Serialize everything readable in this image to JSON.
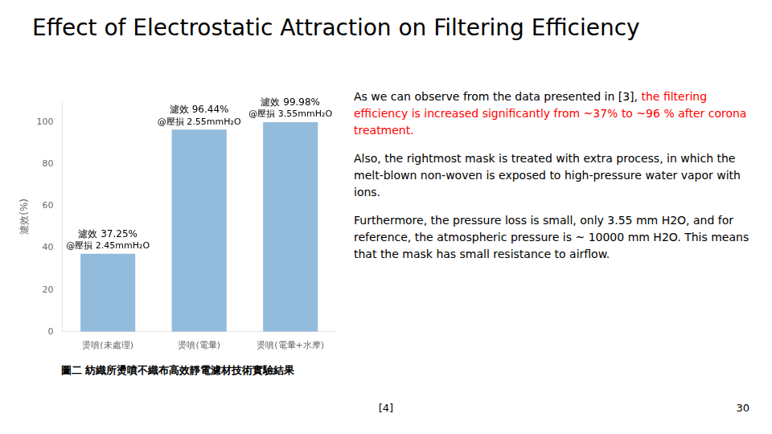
{
  "chart_data": {
    "type": "bar",
    "title": "Effect of Electrostatic Attraction on Filtering Efficiency",
    "categories": [
      "燙噴(未處理)",
      "燙噴(電暈)",
      "燙噴(電暈+水摩)"
    ],
    "values": [
      37.25,
      96.44,
      99.98
    ],
    "color": "#93BBDC",
    "ylabel": "濾效(%)",
    "ylim": [
      0,
      110
    ],
    "yticks": [
      0,
      20,
      40,
      60,
      80,
      100
    ],
    "grid": false,
    "annotations": [
      [
        "濾效 37.25%",
        "@壓損 2.45mmH₂O"
      ],
      [
        "濾效 96.44%",
        "@壓損 2.55mmH₂O"
      ],
      [
        "濾效 99.98%",
        "@壓損 3.55mmH₂O"
      ]
    ]
  },
  "caption": "圖二  紡織所燙噴不織布高效靜電濾材技術實驗結果",
  "footnote": "[4]",
  "page_number": "30",
  "body": [
    [
      {
        "text": "As we can observe from the data presented in [3], ",
        "color": "black"
      },
      {
        "text": "the filtering efficiency is increased significantly from ~37% to ~96 % after corona treatment.",
        "color": "red"
      }
    ],
    [
      {
        "text": "Also, the rightmost mask is treated with extra process, in which the melt-blown non-woven is exposed to high-pressure water vapor with ions.",
        "color": "black"
      }
    ],
    [
      {
        "text": "Furthermore, the pressure loss is small, only 3.55 mm H2O, and for reference, the atmospheric pressure is ~ 10000 mm H2O. This means that the mask has small resistance to airflow.",
        "color": "black"
      }
    ]
  ]
}
